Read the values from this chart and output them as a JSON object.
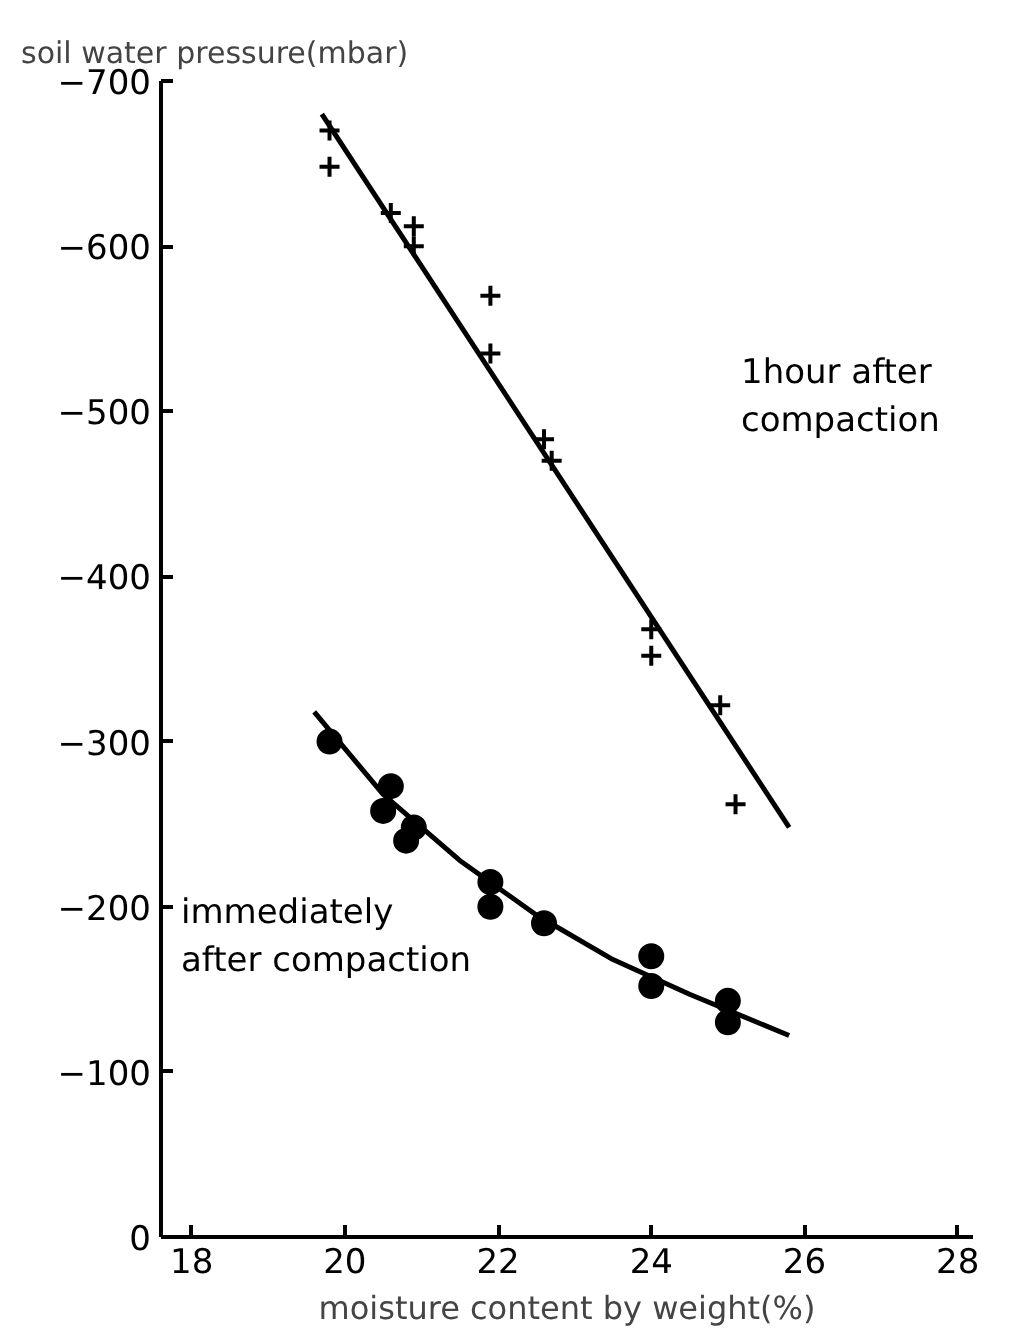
{
  "chart_data": {
    "type": "scatter",
    "ylabel": "soil water pressure(mbar)",
    "xlabel": "moisture content by weight(%)",
    "xlim": [
      17.6,
      28.2
    ],
    "xticks": [
      18,
      20,
      22,
      24,
      26,
      28
    ],
    "ylim": [
      0,
      -700
    ],
    "yticks": [
      0,
      -100,
      -200,
      -300,
      -400,
      -500,
      -600,
      -700
    ],
    "grid": false,
    "series": [
      {
        "marker": "cross",
        "color": "#000000",
        "x": [
          19.8,
          19.8,
          20.6,
          20.9,
          20.9,
          21.9,
          21.9,
          22.6,
          22.7,
          24.0,
          24.0,
          24.9,
          25.1
        ],
        "values": [
          -670,
          -648,
          -620,
          -612,
          -600,
          -570,
          -535,
          -483,
          -470,
          -368,
          -352,
          -322,
          -262
        ]
      },
      {
        "marker": "circle",
        "color": "#000000",
        "x": [
          19.8,
          20.5,
          20.6,
          20.8,
          20.9,
          21.9,
          21.9,
          22.6,
          24.0,
          24.0,
          25.0,
          25.0
        ],
        "values": [
          -300,
          -258,
          -273,
          -240,
          -248,
          -215,
          -200,
          -190,
          -170,
          -152,
          -143,
          -130
        ]
      },
      {
        "type": "line",
        "marker": "none",
        "color": "#000000",
        "x": [
          19.7,
          25.8
        ],
        "values": [
          -680,
          -248
        ]
      },
      {
        "type": "line",
        "marker": "none",
        "color": "#000000",
        "x": [
          19.6,
          20.5,
          21.5,
          22.5,
          23.5,
          24.5,
          25.8
        ],
        "values": [
          -318,
          -268,
          -228,
          -195,
          -168,
          -147,
          -122
        ]
      }
    ],
    "annotations": [
      "1hour after\ncompaction",
      "immediately\nafter compaction"
    ]
  }
}
